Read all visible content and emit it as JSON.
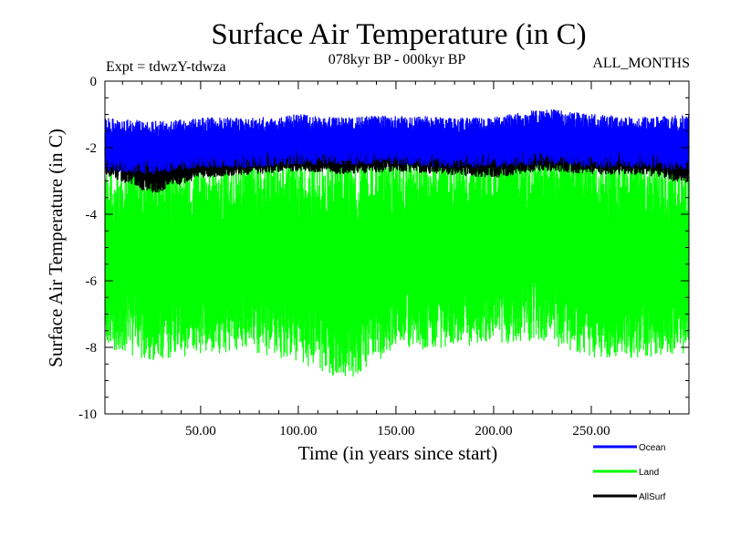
{
  "chart_data": {
    "type": "line",
    "title": "Surface Air Temperature (in C)",
    "subtitle": "078kyr BP - 000kyr BP",
    "experiment": "Expt = tdwzY-tdwza",
    "months": "ALL_MONTHS",
    "xlabel": "Time (in years since start)",
    "ylabel": "Surface Air Temperature (in C)",
    "xlim": [
      1,
      300
    ],
    "ylim": [
      -10,
      0
    ],
    "xticks": [
      50,
      100,
      150,
      200,
      250
    ],
    "xtick_labels": [
      "50.00",
      "100.00",
      "150.00",
      "200.00",
      "250.00"
    ],
    "yticks": [
      0,
      -2,
      -4,
      -6,
      -8,
      -10
    ],
    "ytick_labels": [
      "0",
      "-2",
      "-4",
      "-6",
      "-8",
      "-10"
    ],
    "legend_position": "bottom-right",
    "samples_per_year": 12,
    "series": [
      {
        "name": "Ocean",
        "color": "#0000ff",
        "x": [
          1,
          25,
          50,
          75,
          100,
          125,
          150,
          175,
          200,
          225,
          250,
          275,
          300
        ],
        "upper": [
          -1.1,
          -1.2,
          -1.1,
          -1.1,
          -1.0,
          -1.1,
          -1.0,
          -1.1,
          -1.1,
          -0.8,
          -1.0,
          -1.1,
          -1.0
        ],
        "lower": [
          -2.7,
          -2.8,
          -2.6,
          -2.6,
          -2.5,
          -2.5,
          -2.5,
          -2.6,
          -2.6,
          -2.5,
          -2.6,
          -2.6,
          -2.7
        ]
      },
      {
        "name": "Land",
        "color": "#00ff00",
        "x": [
          1,
          25,
          50,
          75,
          100,
          125,
          150,
          175,
          200,
          225,
          250,
          275,
          300
        ],
        "upper": [
          -2.5,
          -2.6,
          -2.4,
          -2.3,
          -2.2,
          -2.3,
          -2.2,
          -2.3,
          -2.2,
          -2.0,
          -2.2,
          -2.3,
          -2.3
        ],
        "lower": [
          -8.0,
          -8.4,
          -8.2,
          -8.1,
          -8.5,
          -9.0,
          -8.1,
          -8.0,
          -7.9,
          -7.8,
          -8.3,
          -8.3,
          -8.2
        ]
      },
      {
        "name": "AllSurf",
        "color": "#000000",
        "x": [
          1,
          25,
          50,
          75,
          100,
          125,
          150,
          175,
          200,
          225,
          250,
          275,
          300
        ],
        "upper": [
          -1.8,
          -1.9,
          -1.8,
          -1.8,
          -1.7,
          -1.8,
          -1.7,
          -1.8,
          -1.8,
          -1.6,
          -1.8,
          -1.8,
          -1.8
        ],
        "lower": [
          -2.8,
          -3.4,
          -2.9,
          -2.8,
          -2.7,
          -2.8,
          -2.7,
          -2.8,
          -2.9,
          -2.7,
          -2.8,
          -2.8,
          -3.1
        ]
      }
    ]
  }
}
